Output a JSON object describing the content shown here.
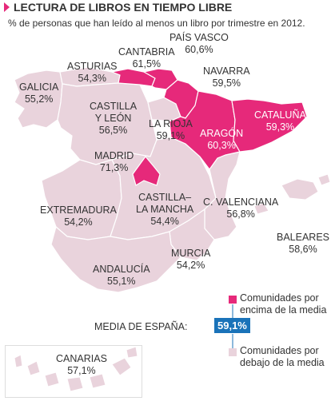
{
  "header": {
    "title": "LECTURA DE LIBROS EN TIEMPO LIBRE",
    "subtitle": "%  de personas que han leído al menos un libro por trimestre en 2012."
  },
  "colors": {
    "above_average": "#e6297a",
    "below_average": "#e9d3dc",
    "borders": "#ffffff",
    "average_badge": "#1a73b9"
  },
  "regions": [
    {
      "id": "galicia",
      "name": "GALICIA",
      "value": "55,2%",
      "above": false
    },
    {
      "id": "asturias",
      "name": "ASTURIAS",
      "value": "54,3%",
      "above": false
    },
    {
      "id": "cantabria",
      "name": "CANTABRIA",
      "value": "61,5%",
      "above": true
    },
    {
      "id": "pais-vasco",
      "name": "PAÍS VASCO",
      "value": "60,6%",
      "above": true
    },
    {
      "id": "navarra",
      "name": "NAVARRA",
      "value": "59,5%",
      "above": true
    },
    {
      "id": "castilla-leon",
      "name1": "CASTILLA",
      "name2": "Y LEÓN",
      "value": "56,5%",
      "above": false
    },
    {
      "id": "la-rioja",
      "name": "LA RIOJA",
      "value": "59,1%",
      "above": false
    },
    {
      "id": "aragon",
      "name": "ARAGÓN",
      "value": "60,3%",
      "above": true
    },
    {
      "id": "cataluna",
      "name": "CATALUÑA",
      "value": "59,3%",
      "above": true
    },
    {
      "id": "madrid",
      "name": "MADRID",
      "value": "71,3%",
      "above": true
    },
    {
      "id": "extremadura",
      "name": "EXTREMADURA",
      "value": "54,2%",
      "above": false
    },
    {
      "id": "castilla-mancha",
      "name1": "CASTILLA–",
      "name2": "LA MANCHA",
      "value": "54,4%",
      "above": false
    },
    {
      "id": "valenciana",
      "name": "C. VALENCIANA",
      "value": "56,8%",
      "above": false
    },
    {
      "id": "baleares",
      "name": "BALEARES",
      "value": "58,6%",
      "above": false
    },
    {
      "id": "murcia",
      "name": "MURCIA",
      "value": "54,2%",
      "above": false
    },
    {
      "id": "andalucia",
      "name": "ANDALUCÍA",
      "value": "55,1%",
      "above": false
    },
    {
      "id": "canarias",
      "name": "CANARIAS",
      "value": "57,1%",
      "above": false
    }
  ],
  "legend": {
    "above_line1": "Comunidades por",
    "above_line2": "encima de la media",
    "below_line1": "Comunidades por",
    "below_line2": "debajo de la media",
    "average_label": "MEDIA DE ESPAÑA:",
    "average_value": "59,1%"
  }
}
